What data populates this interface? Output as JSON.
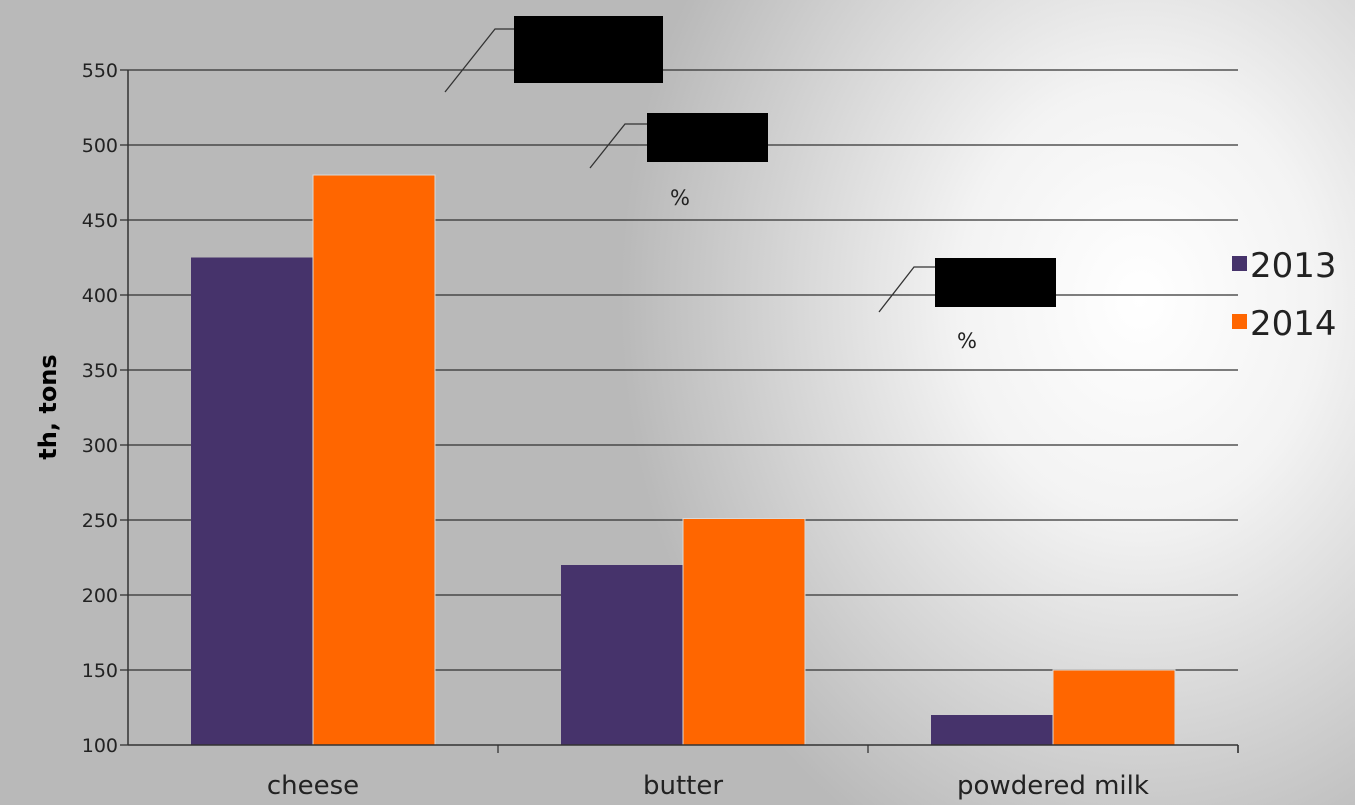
{
  "chart_data": {
    "type": "bar",
    "categories": [
      "cheese",
      "butter",
      "powdered milk"
    ],
    "series": [
      {
        "name": "2013",
        "values": [
          425,
          220,
          120
        ],
        "color": "#46336b"
      },
      {
        "name": "2014",
        "values": [
          480,
          251,
          150
        ],
        "color": "#ff6600"
      }
    ],
    "ylabel": "th, tons",
    "ylim": [
      100,
      550
    ],
    "ytick_step": 50,
    "grid": true,
    "legend": "right",
    "annotations": [
      {
        "text": "",
        "color": "#000000"
      },
      {
        "text": "%",
        "color": "#000000"
      },
      {
        "text": "%",
        "color": "#000000"
      }
    ]
  }
}
